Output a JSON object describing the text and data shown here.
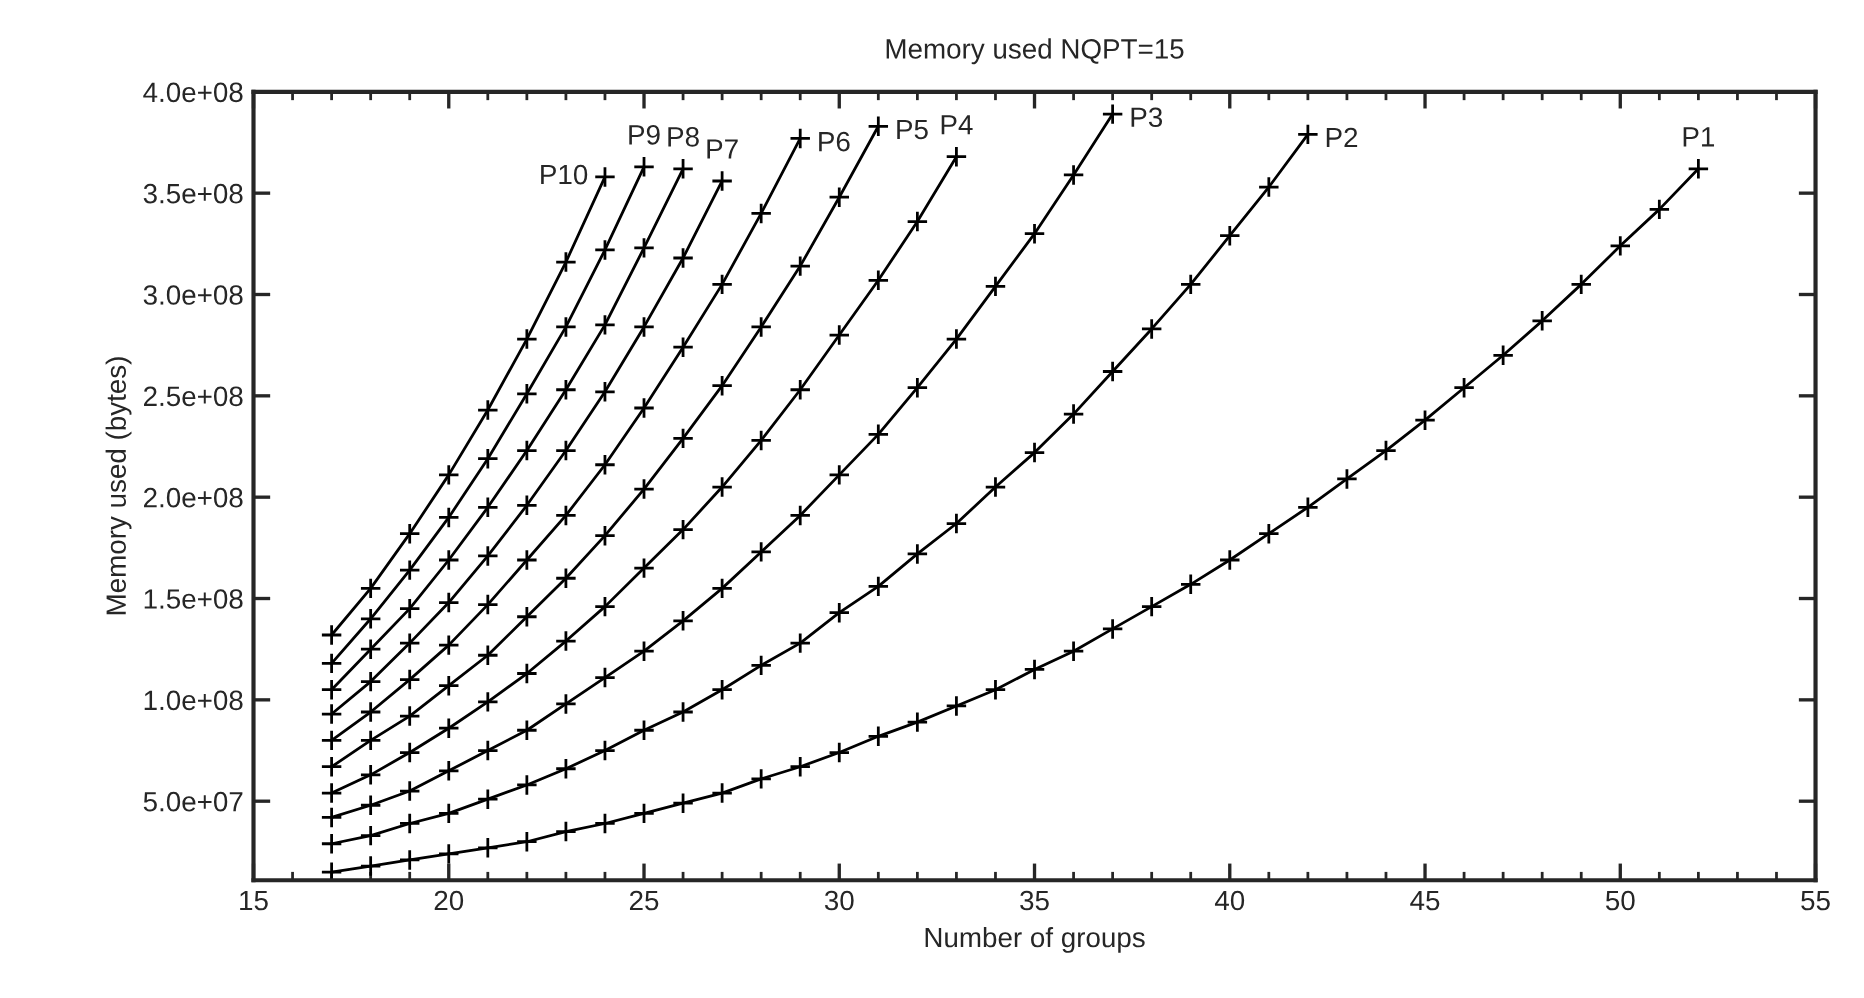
{
  "chart_data": {
    "type": "line",
    "title": "Memory used NQPT=15",
    "xlabel": "Number of groups",
    "ylabel": "Memory used (bytes)",
    "xlim": [
      15,
      55
    ],
    "xticks": [
      15,
      20,
      25,
      30,
      35,
      40,
      45,
      50,
      55
    ],
    "ylim": [
      11000000,
      400000000
    ],
    "yticks": [
      {
        "value": 50000000,
        "label": "5.0e+07"
      },
      {
        "value": 100000000,
        "label": "1.0e+08"
      },
      {
        "value": 150000000,
        "label": "1.5e+08"
      },
      {
        "value": 200000000,
        "label": "2.0e+08"
      },
      {
        "value": 250000000,
        "label": "2.5e+08"
      },
      {
        "value": 300000000,
        "label": "3.0e+08"
      },
      {
        "value": 350000000,
        "label": "3.5e+08"
      },
      {
        "value": 400000000,
        "label": "4.0e+08"
      }
    ],
    "grid": false,
    "legend": false,
    "marker": "cross",
    "line_style": "solid",
    "series": [
      {
        "name": "P1",
        "color": "#000000",
        "x": [
          17,
          18,
          19,
          20,
          21,
          22,
          23,
          24,
          25,
          26,
          27,
          28,
          29,
          30,
          31,
          32,
          33,
          34,
          35,
          36,
          37,
          38,
          39,
          40,
          41,
          42,
          43,
          44,
          45,
          46,
          47,
          48,
          49,
          50,
          51,
          52
        ],
        "values": [
          15000000.0,
          18000000.0,
          21000000.0,
          24000000.0,
          27000000.0,
          30000000.0,
          35000000.0,
          39000000.0,
          44000000.0,
          49000000.0,
          54000000.0,
          61000000.0,
          67000000.0,
          74000000.0,
          82000000.0,
          89000000.0,
          97000000.0,
          105000000.0,
          115000000.0,
          124000000.0,
          135000000.0,
          146000000.0,
          157000000.0,
          169000000.0,
          182000000.0,
          195000000.0,
          209000000.0,
          223000000.0,
          238000000.0,
          254000000.0,
          270000000.0,
          287000000.0,
          305000000.0,
          324000000.0,
          342000000.0,
          362000000.0
        ]
      },
      {
        "name": "P2",
        "color": "#000000",
        "x": [
          17,
          18,
          19,
          20,
          21,
          22,
          23,
          24,
          25,
          26,
          27,
          28,
          29,
          30,
          31,
          32,
          33,
          34,
          35,
          36,
          37,
          38,
          39,
          40,
          41,
          42
        ],
        "values": [
          29000000.0,
          33000000.0,
          39000000.0,
          44000000.0,
          51000000.0,
          58000000.0,
          66000000.0,
          75000000.0,
          85000000.0,
          94000000.0,
          105000000.0,
          117000000.0,
          128000000.0,
          143000000.0,
          156000000.0,
          172000000.0,
          187000000.0,
          205000000.0,
          222000000.0,
          241000000.0,
          262000000.0,
          283000000.0,
          305000000.0,
          329000000.0,
          353000000.0,
          379000000.0
        ]
      },
      {
        "name": "P3",
        "color": "#000000",
        "x": [
          17,
          18,
          19,
          20,
          21,
          22,
          23,
          24,
          25,
          26,
          27,
          28,
          29,
          30,
          31,
          32,
          33,
          34,
          35,
          36,
          37
        ],
        "values": [
          42000000.0,
          48000000.0,
          55000000.0,
          65000000.0,
          75000000.0,
          85000000.0,
          98000000.0,
          111000000.0,
          124000000.0,
          139000000.0,
          155000000.0,
          173000000.0,
          191000000.0,
          211000000.0,
          231000000.0,
          254000000.0,
          278000000.0,
          304000000.0,
          330000000.0,
          359000000.0,
          389000000.0
        ]
      },
      {
        "name": "P4",
        "color": "#000000",
        "x": [
          17,
          18,
          19,
          20,
          21,
          22,
          23,
          24,
          25,
          26,
          27,
          28,
          29,
          30,
          31,
          32,
          33
        ],
        "values": [
          54000000.0,
          63000000.0,
          74000000.0,
          86000000.0,
          99000000.0,
          113000000.0,
          129000000.0,
          146000000.0,
          165000000.0,
          184000000.0,
          205000000.0,
          228000000.0,
          253000000.0,
          280000000.0,
          307000000.0,
          336000000.0,
          368000000.0
        ]
      },
      {
        "name": "P5",
        "color": "#000000",
        "x": [
          17,
          18,
          19,
          20,
          21,
          22,
          23,
          24,
          25,
          26,
          27,
          28,
          29,
          30,
          31
        ],
        "values": [
          67000000.0,
          80000000.0,
          92000000.0,
          107000000.0,
          122000000.0,
          141000000.0,
          160000000.0,
          181000000.0,
          204000000.0,
          229000000.0,
          255000000.0,
          284000000.0,
          314000000.0,
          348000000.0,
          383000000.0
        ]
      },
      {
        "name": "P6",
        "color": "#000000",
        "x": [
          17,
          18,
          19,
          20,
          21,
          22,
          23,
          24,
          25,
          26,
          27,
          28,
          29
        ],
        "values": [
          80000000.0,
          94000000.0,
          110000000.0,
          127000000.0,
          147000000.0,
          169000000.0,
          191000000.0,
          216000000.0,
          244000000.0,
          274000000.0,
          305000000.0,
          340000000.0,
          377000000.0
        ]
      },
      {
        "name": "P7",
        "color": "#000000",
        "x": [
          17,
          18,
          19,
          20,
          21,
          22,
          23,
          24,
          25,
          26,
          27
        ],
        "values": [
          93000000.0,
          109000000.0,
          128000000.0,
          148000000.0,
          171000000.0,
          196000000.0,
          223000000.0,
          252000000.0,
          284000000.0,
          318000000.0,
          356000000.0
        ]
      },
      {
        "name": "P8",
        "color": "#000000",
        "x": [
          17,
          18,
          19,
          20,
          21,
          22,
          23,
          24,
          25,
          26
        ],
        "values": [
          105000000.0,
          125000000.0,
          145000000.0,
          169000000.0,
          195000000.0,
          223000000.0,
          253000000.0,
          285000000.0,
          323000000.0,
          362000000.0
        ]
      },
      {
        "name": "P9",
        "color": "#000000",
        "x": [
          17,
          18,
          19,
          20,
          21,
          22,
          23,
          24,
          25
        ],
        "values": [
          118000000.0,
          140000000.0,
          164000000.0,
          190000000.0,
          219000000.0,
          251000000.0,
          284000000.0,
          322000000.0,
          363000000.0
        ]
      },
      {
        "name": "P10",
        "color": "#000000",
        "x": [
          17,
          18,
          19,
          20,
          21,
          22,
          23,
          24
        ],
        "values": [
          132000000.0,
          155000000.0,
          182000000.0,
          211000000.0,
          243000000.0,
          278000000.0,
          316000000.0,
          358000000.0
        ]
      }
    ]
  }
}
